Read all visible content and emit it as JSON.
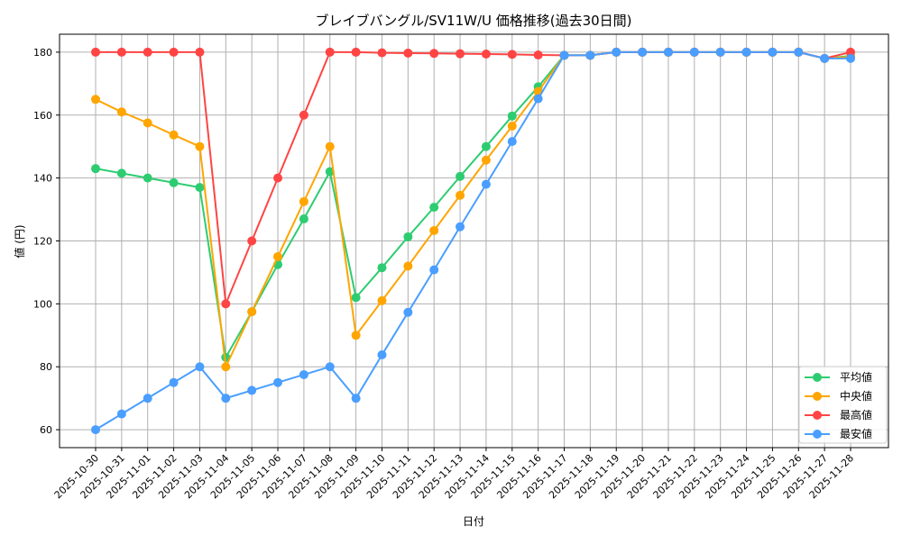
{
  "chart_data": {
    "type": "line",
    "title": "ブレイブバングル/SV11W/U 価格推移(過去30日間)",
    "xlabel": "日付",
    "ylabel": "値 (円)",
    "ylim": [
      54.3,
      185.7
    ],
    "yticks": [
      60,
      80,
      100,
      120,
      140,
      160,
      180
    ],
    "grid": true,
    "legend_position": "bottom-right",
    "x": [
      "2025-10-30",
      "2025-10-31",
      "2025-11-01",
      "2025-11-02",
      "2025-11-03",
      "2025-11-04",
      "2025-11-05",
      "2025-11-06",
      "2025-11-07",
      "2025-11-08",
      "2025-11-09",
      "2025-11-10",
      "2025-11-11",
      "2025-11-12",
      "2025-11-13",
      "2025-11-14",
      "2025-11-15",
      "2025-11-16",
      "2025-11-17",
      "2025-11-18",
      "2025-11-19",
      "2025-11-20",
      "2025-11-21",
      "2025-11-22",
      "2025-11-23",
      "2025-11-24",
      "2025-11-25",
      "2025-11-26",
      "2025-11-27",
      "2025-11-28"
    ],
    "series": [
      {
        "name": "平均値",
        "color": "#2ecc71",
        "values": [
          143,
          141.5,
          140,
          138.5,
          137,
          83,
          97.5,
          112.5,
          127,
          142,
          102,
          111.5,
          121.3,
          130.7,
          140.5,
          150,
          159.7,
          169,
          179,
          179,
          180,
          180,
          180,
          180,
          180,
          180,
          180,
          180,
          178,
          178.8
        ]
      },
      {
        "name": "中央値",
        "color": "#ffa500",
        "values": [
          165,
          161,
          157.5,
          153.7,
          150,
          80,
          97.5,
          115,
          132.5,
          150,
          90,
          101,
          112,
          123.3,
          134.5,
          145.7,
          156.5,
          167.5,
          179,
          179,
          180,
          180,
          180,
          180,
          180,
          180,
          180,
          180,
          178,
          178.5
        ]
      },
      {
        "name": "最高値",
        "color": "#ff4444",
        "values": [
          180,
          180,
          180,
          180,
          180,
          100,
          120,
          140,
          160,
          180,
          180,
          179.8,
          179.7,
          179.6,
          179.5,
          179.4,
          179.3,
          179.1,
          179,
          179,
          180,
          180,
          180,
          180,
          180,
          180,
          180,
          180,
          178,
          180
        ]
      },
      {
        "name": "最安値",
        "color": "#4a9eff",
        "values": [
          60,
          65,
          70,
          75,
          80,
          70,
          72.5,
          75,
          77.5,
          80,
          70,
          83.8,
          97.3,
          110.8,
          124.5,
          138,
          151.6,
          165.2,
          179,
          179,
          180,
          180,
          180,
          180,
          180,
          180,
          180,
          180,
          178,
          178
        ]
      }
    ]
  }
}
